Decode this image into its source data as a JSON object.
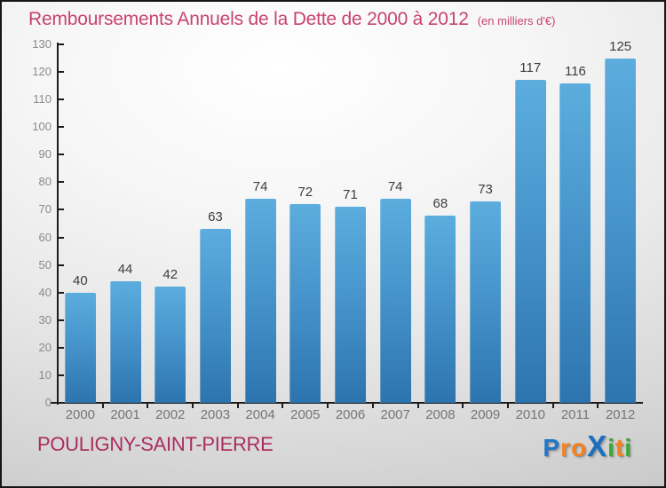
{
  "header": {
    "title": "Remboursements Annuels de la Dette de 2000 à 2012",
    "subtitle": "(en milliers d'€)"
  },
  "chart_data": {
    "type": "bar",
    "title": "Remboursements Annuels de la Dette de 2000 à 2012",
    "subtitle": "(en milliers d'€)",
    "categories": [
      "2000",
      "2001",
      "2002",
      "2003",
      "2004",
      "2005",
      "2006",
      "2007",
      "2008",
      "2009",
      "2010",
      "2011",
      "2012"
    ],
    "values": [
      40,
      44,
      42,
      63,
      74,
      72,
      71,
      74,
      68,
      73,
      117,
      116,
      125
    ],
    "xlabel": "",
    "ylabel": "",
    "ylim": [
      0,
      130
    ],
    "ytick_step": 10,
    "grid": false,
    "legend": "none",
    "value_labels_shown": true
  },
  "footer": {
    "commune": "POULIGNY-SAINT-PIERRE",
    "logo": {
      "text": "Proxiti",
      "letters": [
        {
          "char": "P",
          "color": "#2277c8",
          "emphasis": false
        },
        {
          "char": "r",
          "color": "#f58220",
          "emphasis": false
        },
        {
          "char": "o",
          "color": "#f58220",
          "emphasis": false
        },
        {
          "char": "X",
          "color": "#1b6fc0",
          "emphasis": true
        },
        {
          "char": "i",
          "color": "#3aaa35",
          "emphasis": false
        },
        {
          "char": "t",
          "color": "#f58220",
          "emphasis": false
        },
        {
          "char": "i",
          "color": "#3aaa35",
          "emphasis": false
        }
      ]
    }
  },
  "colors": {
    "title_pink": "#c8436f",
    "commune_pink": "#ab2c5e",
    "bar_top": "#5cadde",
    "bar_bottom": "#2d74ae",
    "axis": "#1c1c1c",
    "ytick_label": "#8a8a8a",
    "xtick_label": "#757575",
    "value_label": "#3d3d3d"
  }
}
